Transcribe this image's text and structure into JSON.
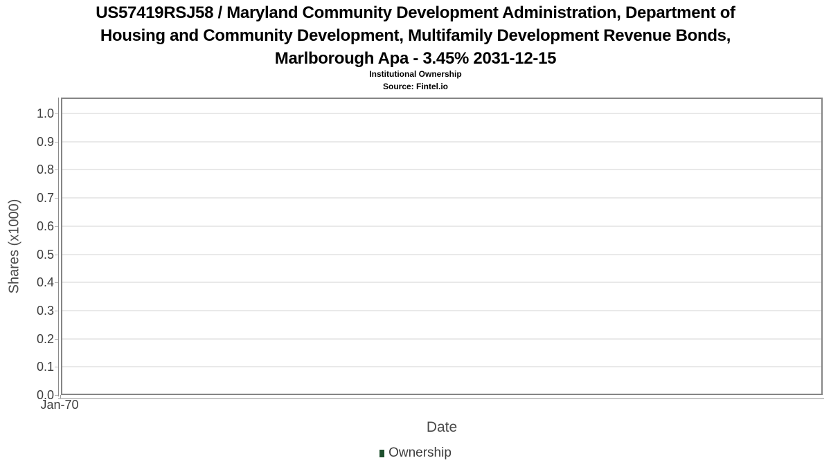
{
  "chart_data": {
    "type": "line",
    "title": "US57419RSJ58 / Maryland Community Development Administration, Department of Housing and Community Development, Multifamily Development Revenue Bonds, Marlborough Apa - 3.45% 2031-12-15",
    "title_lines": [
      "US57419RSJ58 / Maryland Community Development Administration, Department of",
      "Housing and Community Development, Multifamily Development Revenue Bonds,",
      "Marlborough Apa - 3.45% 2031-12-15"
    ],
    "subtitle": "Institutional Ownership",
    "source": "Source: Fintel.io",
    "xlabel": "Date",
    "ylabel": "Shares (x1000)",
    "x_ticks": [
      "Jan-70"
    ],
    "y_ticks": [
      "0.0",
      "0.1",
      "0.2",
      "0.3",
      "0.4",
      "0.5",
      "0.6",
      "0.7",
      "0.8",
      "0.9",
      "1.0"
    ],
    "ylim": [
      0.0,
      1.06
    ],
    "grid": true,
    "legend_position": "bottom",
    "series": [
      {
        "name": "Ownership",
        "color": "#1e4f2d",
        "points": []
      }
    ]
  }
}
